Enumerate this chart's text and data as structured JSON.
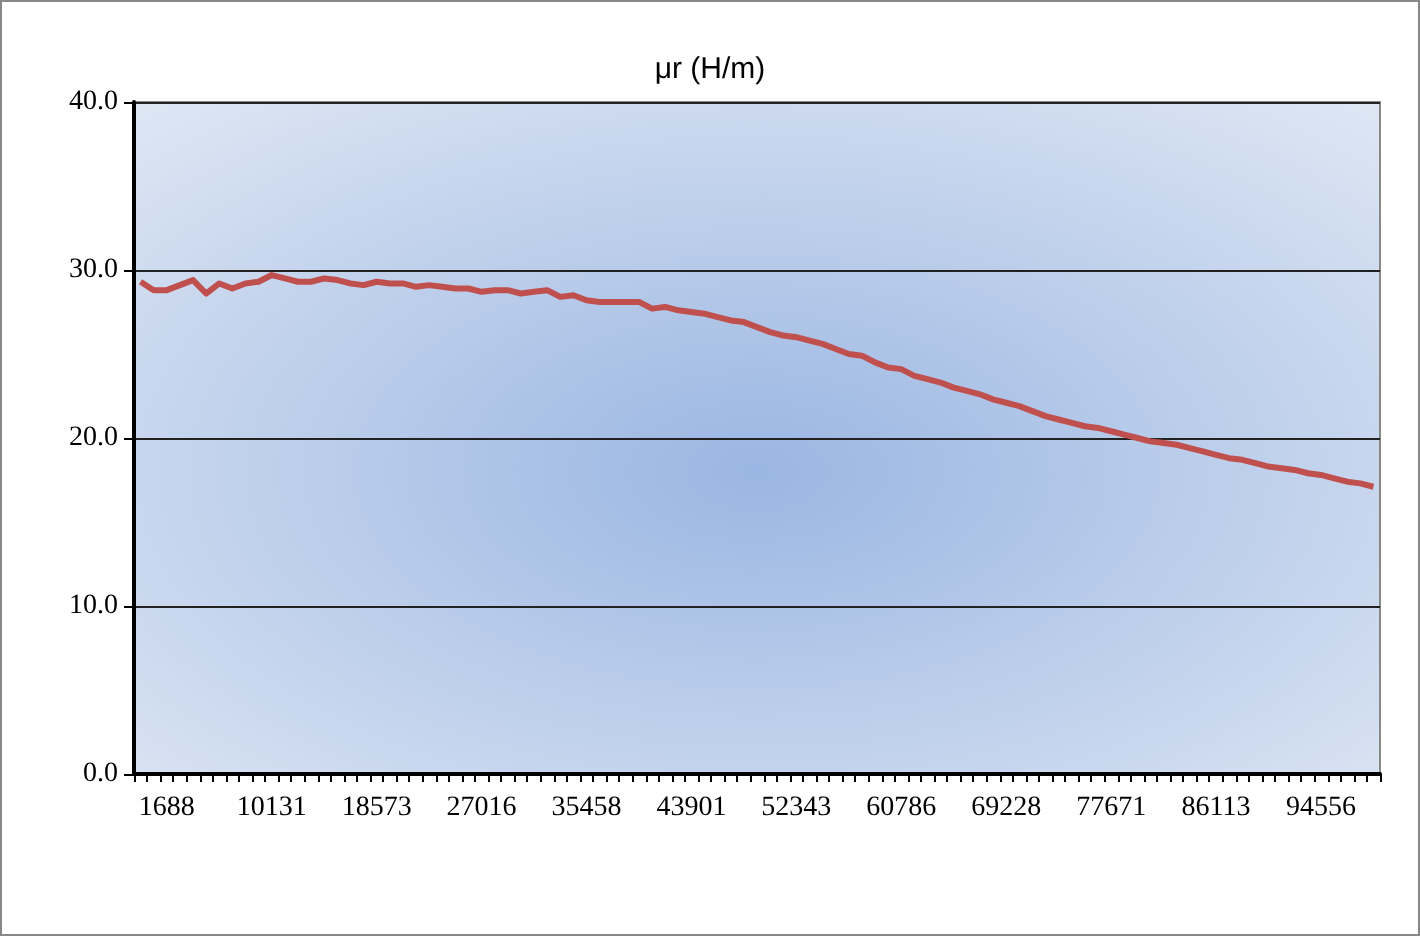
{
  "chart_data": {
    "type": "line",
    "title": "μr (H/m)",
    "categories": [
      null,
      null,
      "1688",
      null,
      null,
      null,
      null,
      null,
      null,
      null,
      "10131",
      null,
      null,
      null,
      null,
      null,
      null,
      null,
      "18573",
      null,
      null,
      null,
      null,
      null,
      null,
      null,
      "27016",
      null,
      null,
      null,
      null,
      null,
      null,
      null,
      "35458",
      null,
      null,
      null,
      null,
      null,
      null,
      null,
      "43901",
      null,
      null,
      null,
      null,
      null,
      null,
      null,
      "52343",
      null,
      null,
      null,
      null,
      null,
      null,
      null,
      "60786",
      null,
      null,
      null,
      null,
      null,
      null,
      null,
      "69228",
      null,
      null,
      null,
      null,
      null,
      null,
      null,
      "77671",
      null,
      null,
      null,
      null,
      null,
      null,
      null,
      "86113",
      null,
      null,
      null,
      null,
      null,
      null,
      null,
      "94556",
      null,
      null,
      null,
      null
    ],
    "series": [
      {
        "color": "#c0504d",
        "values": [
          29.3,
          28.8,
          28.8,
          29.1,
          29.4,
          28.6,
          29.2,
          28.9,
          29.2,
          29.3,
          29.7,
          29.5,
          29.3,
          29.3,
          29.5,
          29.4,
          29.2,
          29.1,
          29.3,
          29.2,
          29.2,
          29.0,
          29.1,
          29.0,
          28.9,
          28.9,
          28.7,
          28.8,
          28.8,
          28.6,
          28.7,
          28.8,
          28.4,
          28.5,
          28.2,
          28.1,
          28.1,
          28.1,
          28.1,
          27.7,
          27.8,
          27.6,
          27.5,
          27.4,
          27.2,
          27.0,
          26.9,
          26.6,
          26.3,
          26.1,
          26.0,
          25.8,
          25.6,
          25.3,
          25.0,
          24.9,
          24.5,
          24.2,
          24.1,
          23.7,
          23.5,
          23.3,
          23.0,
          22.8,
          22.6,
          22.3,
          22.1,
          21.9,
          21.6,
          21.3,
          21.1,
          20.9,
          20.7,
          20.6,
          20.4,
          20.2,
          20.0,
          19.8,
          19.7,
          19.6,
          19.4,
          19.2,
          19.0,
          18.8,
          18.7,
          18.5,
          18.3,
          18.2,
          18.1,
          17.9,
          17.8,
          17.6,
          17.4,
          17.3,
          17.1
        ]
      }
    ],
    "ylim": [
      0,
      40
    ],
    "yticks": [
      {
        "value": 0,
        "label": "0.0"
      },
      {
        "value": 10,
        "label": "10.0"
      },
      {
        "value": 20,
        "label": "20.0"
      },
      {
        "value": 30,
        "label": "30.0"
      },
      {
        "value": 40,
        "label": "40.0"
      }
    ],
    "grid": "y",
    "marker": "none",
    "line_style": "solid"
  }
}
